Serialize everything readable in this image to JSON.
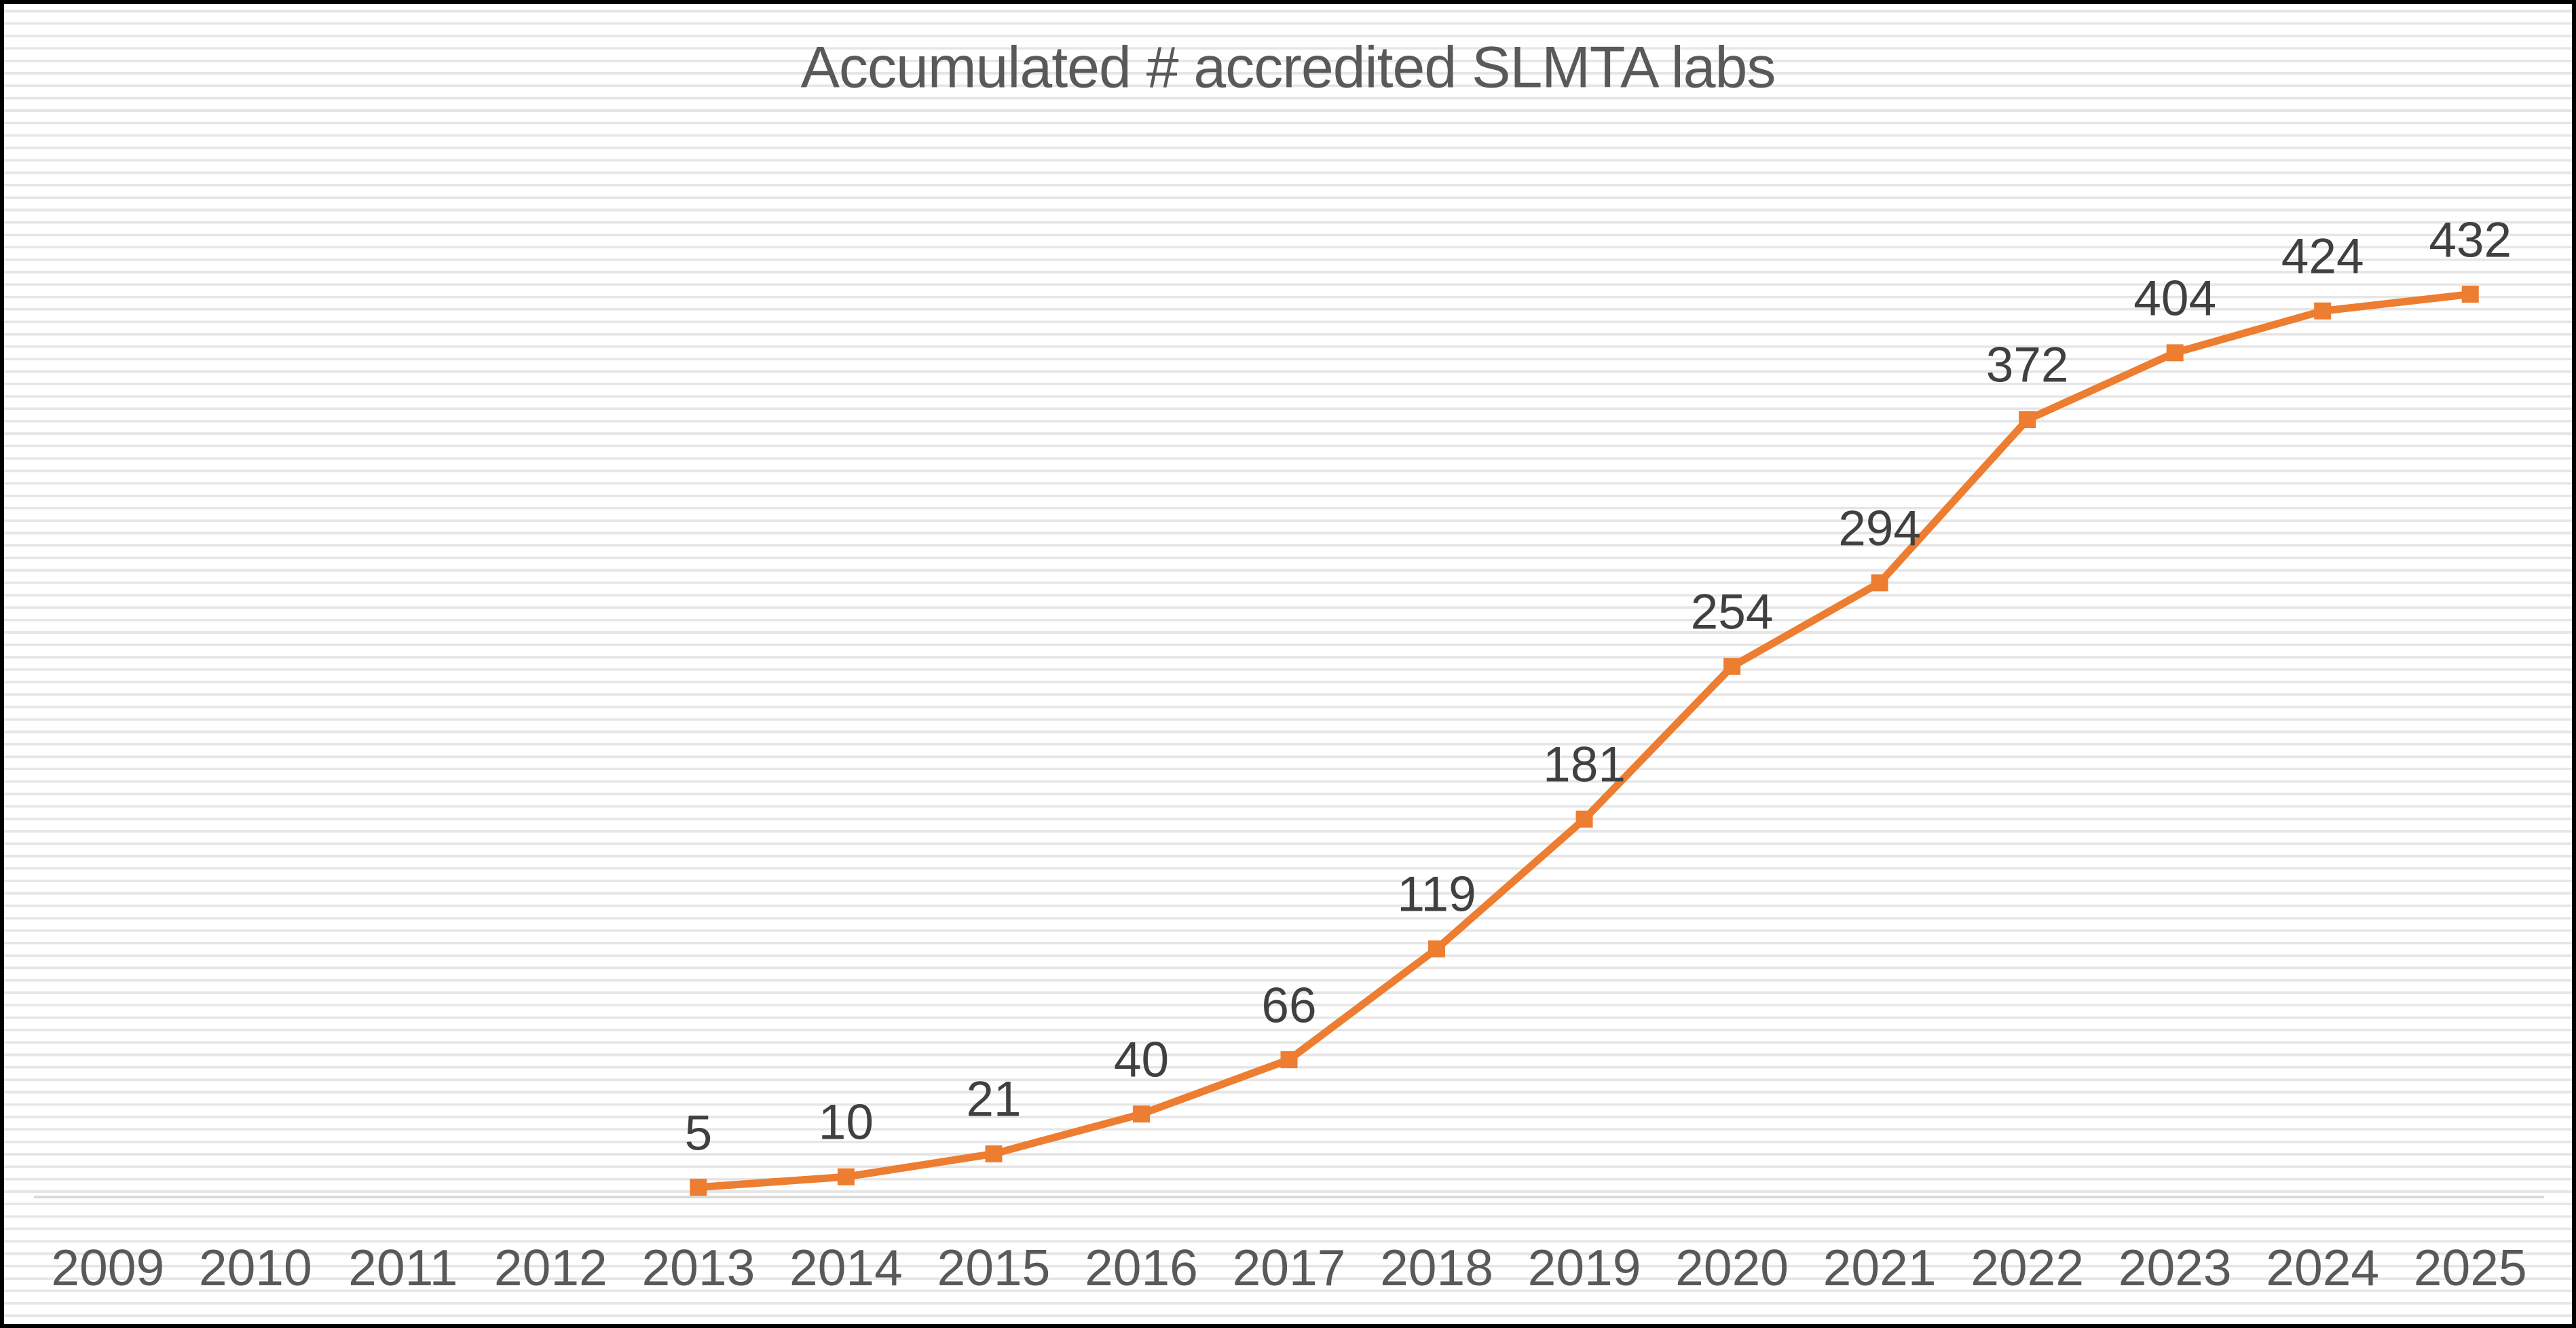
{
  "frame": {
    "border_color": "#000000"
  },
  "chart_data": {
    "type": "line",
    "title": "Accumulated # accredited SLMTA labs",
    "categories": [
      "2009",
      "2010",
      "2011",
      "2012",
      "2013",
      "2014",
      "2015",
      "2016",
      "2017",
      "2018",
      "2019",
      "2020",
      "2021",
      "2022",
      "2023",
      "2024",
      "2025"
    ],
    "series": [
      {
        "values": [
          null,
          null,
          null,
          null,
          5,
          10,
          21,
          40,
          66,
          119,
          181,
          254,
          294,
          372,
          404,
          424,
          432
        ],
        "color": "#ED7D31",
        "marker": "square"
      }
    ],
    "data_labels_position": "above",
    "data_label_color": "#404040",
    "title_color": "#595959",
    "axis_label_color": "#595959",
    "axis_line_color": "#D9D9D9",
    "background_stripe_color": "#E6E6E6",
    "legend": "none",
    "y_axis_labels": "none",
    "grid": "background-stripes"
  }
}
